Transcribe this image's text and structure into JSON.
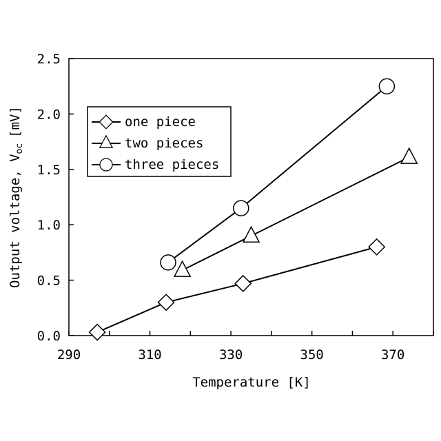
{
  "chart_data": {
    "type": "line",
    "title": "",
    "xlabel": "Temperature [K]",
    "ylabel_main": "Output voltage, V",
    "ylabel_sub": "oc",
    "ylabel_unit": "[mV]",
    "xlim": [
      290,
      380
    ],
    "ylim": [
      0,
      2.5
    ],
    "x_ticks": [
      290,
      310,
      330,
      350,
      370
    ],
    "x_tick_labels": [
      "290",
      "310",
      "330",
      "350",
      "370"
    ],
    "y_ticks": [
      0,
      0.5,
      1.0,
      1.5,
      2.0,
      2.5
    ],
    "y_tick_labels": [
      "0.0",
      "0.5",
      "1.0",
      "1.5",
      "2.0",
      "2.5"
    ],
    "grid": false,
    "legend_position": "upper-left",
    "series": [
      {
        "name": "one piece",
        "marker": "diamond",
        "x": [
          297,
          314,
          333,
          366
        ],
        "y": [
          0.03,
          0.3,
          0.47,
          0.8
        ]
      },
      {
        "name": "two pieces",
        "marker": "triangle",
        "x": [
          318,
          335,
          374
        ],
        "y": [
          0.59,
          0.9,
          1.61
        ]
      },
      {
        "name": "three pieces",
        "marker": "circle",
        "x": [
          314.5,
          332.5,
          368.5
        ],
        "y": [
          0.66,
          1.15,
          2.25
        ]
      }
    ]
  }
}
